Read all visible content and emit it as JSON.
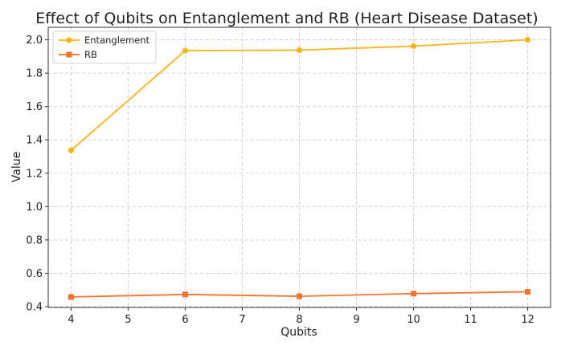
{
  "chart_data": {
    "type": "line",
    "title": "Effect of Qubits on Entanglement and RB (Heart Disease Dataset)",
    "xlabel": "Qubits",
    "ylabel": "Value",
    "x": [
      4,
      6,
      8,
      10,
      12
    ],
    "xlim": [
      3.6,
      12.4
    ],
    "ylim": [
      0.395,
      2.075
    ],
    "xticks": [
      4,
      5,
      6,
      7,
      8,
      9,
      10,
      11,
      12
    ],
    "yticks": [
      0.4,
      0.6,
      0.8,
      1.0,
      1.2,
      1.4,
      1.6,
      1.8,
      2.0
    ],
    "grid": true,
    "legend_position": "top-left",
    "series": [
      {
        "name": "Entanglement",
        "values": [
          1.337,
          1.935,
          1.938,
          1.962,
          2.0
        ],
        "color": "#fbb41a",
        "marker": "circle"
      },
      {
        "name": "RB",
        "values": [
          0.458,
          0.473,
          0.462,
          0.478,
          0.489
        ],
        "color": "#f1732c",
        "marker": "square"
      }
    ]
  }
}
